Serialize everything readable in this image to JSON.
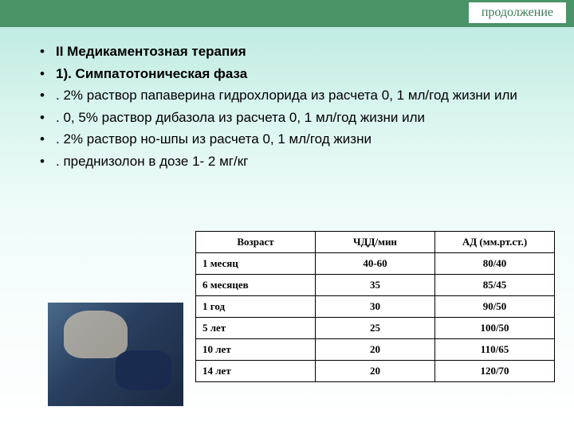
{
  "header": {
    "label": "продолжение",
    "bar_color": "#4a9268",
    "label_bg": "#ffffff",
    "label_color": "#3a7a52"
  },
  "bullets": {
    "items": [
      "II  Медикаментозная терапия",
      "1). Симпатотоническая фаза",
      ". 2% раствор папаверина гидрохлорида  из расчета 0, 1 мл/год жизни или",
      ". 0, 5% раствор дибазола из расчета 0, 1 мл/год жизни или",
      ". 2% раствор но-шпы из расчета 0, 1 мл/год жизни",
      ". преднизолон в дозе 1- 2 мг/кг"
    ],
    "bold_indices": [
      0,
      1
    ]
  },
  "table": {
    "columns": [
      "Возраст",
      "ЧДД/мин",
      "АД (мм.рт.ст.)"
    ],
    "rows": [
      [
        "1 месяц",
        "40-60",
        "80/40"
      ],
      [
        "6 месяцев",
        "35",
        "85/45"
      ],
      [
        "1 год",
        "30",
        "90/50"
      ],
      [
        "5 лет",
        "25",
        "100/50"
      ],
      [
        "10 лет",
        "20",
        "110/65"
      ],
      [
        "14 лет",
        "20",
        "120/70"
      ]
    ],
    "border_color": "#000000",
    "background_color": "#ffffff",
    "fontsize": 13
  },
  "image": {
    "semantic": "blood-pressure-measurement-photo",
    "width": 170,
    "height": 130
  }
}
